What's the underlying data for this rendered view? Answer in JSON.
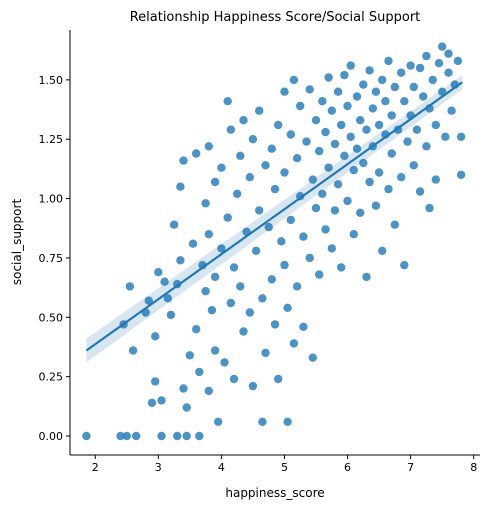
{
  "chart_data": {
    "type": "scatter",
    "title": "Relationship Happiness Score/Social Support",
    "xlabel": "happiness_score",
    "ylabel": "social_support",
    "xlim": [
      1.6,
      8.1
    ],
    "ylim": [
      -0.08,
      1.71
    ],
    "xticks": [
      2,
      3,
      4,
      5,
      6,
      7,
      8
    ],
    "yticks": [
      0.0,
      0.25,
      0.5,
      0.75,
      1.0,
      1.25,
      1.5
    ],
    "xtick_labels": [
      "2",
      "3",
      "4",
      "5",
      "6",
      "7",
      "8"
    ],
    "ytick_labels": [
      "0.00",
      "0.25",
      "0.50",
      "0.75",
      "1.00",
      "1.25",
      "1.50"
    ],
    "grid": false,
    "point_color": "#1f77b4",
    "regression": {
      "x": [
        1.86,
        7.82
      ],
      "y": [
        0.36,
        1.49
      ],
      "ci_lower": [
        0.31,
        1.46
      ],
      "ci_upper": [
        0.41,
        1.52
      ]
    },
    "points": [
      [
        1.86,
        0.0
      ],
      [
        2.4,
        0.0
      ],
      [
        2.5,
        0.0
      ],
      [
        2.65,
        0.0
      ],
      [
        3.05,
        0.0
      ],
      [
        3.3,
        0.0
      ],
      [
        3.45,
        0.0
      ],
      [
        3.65,
        0.0
      ],
      [
        2.45,
        0.47
      ],
      [
        2.55,
        0.63
      ],
      [
        2.6,
        0.36
      ],
      [
        2.8,
        0.52
      ],
      [
        2.85,
        0.57
      ],
      [
        2.9,
        0.14
      ],
      [
        2.95,
        0.23
      ],
      [
        3.0,
        0.69
      ],
      [
        3.05,
        0.15
      ],
      [
        2.95,
        0.42
      ],
      [
        3.1,
        0.65
      ],
      [
        3.15,
        0.58
      ],
      [
        3.2,
        0.51
      ],
      [
        3.25,
        0.89
      ],
      [
        3.3,
        0.64
      ],
      [
        3.35,
        0.74
      ],
      [
        3.35,
        1.05
      ],
      [
        3.4,
        1.16
      ],
      [
        3.4,
        0.2
      ],
      [
        3.45,
        0.12
      ],
      [
        3.5,
        0.34
      ],
      [
        3.55,
        0.81
      ],
      [
        3.6,
        1.19
      ],
      [
        3.6,
        0.45
      ],
      [
        3.65,
        0.27
      ],
      [
        3.7,
        0.72
      ],
      [
        3.75,
        0.61
      ],
      [
        3.75,
        0.98
      ],
      [
        3.8,
        1.22
      ],
      [
        3.8,
        0.85
      ],
      [
        3.8,
        0.19
      ],
      [
        3.85,
        0.53
      ],
      [
        3.9,
        1.07
      ],
      [
        3.9,
        0.67
      ],
      [
        3.9,
        0.36
      ],
      [
        3.95,
        0.06
      ],
      [
        4.0,
        1.13
      ],
      [
        4.0,
        0.79
      ],
      [
        4.05,
        0.31
      ],
      [
        4.1,
        1.41
      ],
      [
        4.1,
        0.92
      ],
      [
        4.15,
        0.56
      ],
      [
        4.15,
        1.29
      ],
      [
        4.2,
        0.71
      ],
      [
        4.2,
        0.24
      ],
      [
        4.25,
        1.02
      ],
      [
        4.3,
        0.63
      ],
      [
        4.3,
        1.18
      ],
      [
        4.35,
        0.44
      ],
      [
        4.35,
        1.33
      ],
      [
        4.4,
        0.86
      ],
      [
        4.45,
        1.09
      ],
      [
        4.45,
        0.52
      ],
      [
        4.5,
        1.25
      ],
      [
        4.5,
        0.21
      ],
      [
        4.55,
        0.78
      ],
      [
        4.6,
        1.37
      ],
      [
        4.6,
        0.95
      ],
      [
        4.65,
        0.58
      ],
      [
        4.65,
        0.06
      ],
      [
        4.7,
        1.14
      ],
      [
        4.7,
        0.35
      ],
      [
        4.75,
        0.88
      ],
      [
        4.8,
        1.21
      ],
      [
        4.8,
        0.66
      ],
      [
        4.85,
        1.04
      ],
      [
        4.85,
        0.47
      ],
      [
        4.9,
        1.31
      ],
      [
        4.9,
        0.24
      ],
      [
        4.95,
        0.82
      ],
      [
        5.0,
        1.45
      ],
      [
        5.0,
        1.11
      ],
      [
        5.0,
        0.72
      ],
      [
        5.05,
        0.54
      ],
      [
        5.05,
        0.06
      ],
      [
        5.1,
        1.27
      ],
      [
        5.1,
        0.91
      ],
      [
        5.15,
        1.5
      ],
      [
        5.15,
        0.39
      ],
      [
        5.2,
        1.17
      ],
      [
        5.2,
        0.63
      ],
      [
        5.25,
        1.39
      ],
      [
        5.25,
        1.01
      ],
      [
        5.3,
        0.84
      ],
      [
        5.3,
        0.46
      ],
      [
        5.35,
        1.24
      ],
      [
        5.4,
        1.46
      ],
      [
        5.4,
        0.75
      ],
      [
        5.45,
        0.33
      ],
      [
        5.45,
        1.08
      ],
      [
        5.5,
        1.33
      ],
      [
        5.5,
        0.96
      ],
      [
        5.55,
        1.2
      ],
      [
        5.55,
        0.68
      ],
      [
        5.6,
        1.41
      ],
      [
        5.6,
        1.02
      ],
      [
        5.65,
        1.28
      ],
      [
        5.65,
        0.87
      ],
      [
        5.7,
        1.51
      ],
      [
        5.7,
        1.13
      ],
      [
        5.75,
        0.79
      ],
      [
        5.75,
        1.37
      ],
      [
        5.8,
        1.23
      ],
      [
        5.8,
        0.95
      ],
      [
        5.85,
        1.45
      ],
      [
        5.85,
        1.06
      ],
      [
        5.9,
        1.31
      ],
      [
        5.9,
        0.71
      ],
      [
        5.95,
        1.52
      ],
      [
        5.95,
        1.18
      ],
      [
        6.0,
        1.39
      ],
      [
        6.0,
        0.99
      ],
      [
        6.05,
        1.26
      ],
      [
        6.05,
        1.56
      ],
      [
        6.1,
        1.12
      ],
      [
        6.1,
        0.85
      ],
      [
        6.15,
        1.43
      ],
      [
        6.15,
        1.21
      ],
      [
        6.2,
        1.33
      ],
      [
        6.2,
        0.94
      ],
      [
        6.25,
        1.48
      ],
      [
        6.25,
        1.15
      ],
      [
        6.3,
        1.29
      ],
      [
        6.3,
        0.67
      ],
      [
        6.35,
        1.54
      ],
      [
        6.35,
        1.07
      ],
      [
        6.4,
        1.38
      ],
      [
        6.4,
        1.22
      ],
      [
        6.45,
        0.97
      ],
      [
        6.45,
        1.45
      ],
      [
        6.5,
        1.31
      ],
      [
        6.5,
        1.11
      ],
      [
        6.55,
        1.5
      ],
      [
        6.55,
        0.78
      ],
      [
        6.6,
        1.27
      ],
      [
        6.6,
        1.41
      ],
      [
        6.65,
        1.04
      ],
      [
        6.65,
        1.58
      ],
      [
        6.7,
        1.35
      ],
      [
        6.7,
        1.19
      ],
      [
        6.75,
        1.47
      ],
      [
        6.75,
        0.89
      ],
      [
        6.8,
        1.29
      ],
      [
        6.85,
        1.53
      ],
      [
        6.85,
        1.09
      ],
      [
        6.9,
        1.41
      ],
      [
        6.9,
        0.72
      ],
      [
        6.95,
        1.24
      ],
      [
        7.0,
        1.56
      ],
      [
        7.0,
        1.35
      ],
      [
        7.05,
        1.14
      ],
      [
        7.05,
        1.47
      ],
      [
        7.1,
        1.29
      ],
      [
        7.15,
        1.55
      ],
      [
        7.15,
        1.03
      ],
      [
        7.2,
        1.43
      ],
      [
        7.25,
        1.22
      ],
      [
        7.25,
        1.6
      ],
      [
        7.3,
        1.38
      ],
      [
        7.3,
        0.96
      ],
      [
        7.35,
        1.5
      ],
      [
        7.4,
        1.31
      ],
      [
        7.4,
        1.08
      ],
      [
        7.45,
        1.57
      ],
      [
        7.5,
        1.45
      ],
      [
        7.5,
        1.64
      ],
      [
        7.55,
        1.26
      ],
      [
        7.6,
        1.53
      ],
      [
        7.6,
        1.61
      ],
      [
        7.65,
        1.37
      ],
      [
        7.7,
        1.48
      ],
      [
        7.75,
        1.58
      ],
      [
        7.8,
        1.1
      ],
      [
        7.8,
        1.26
      ]
    ]
  }
}
